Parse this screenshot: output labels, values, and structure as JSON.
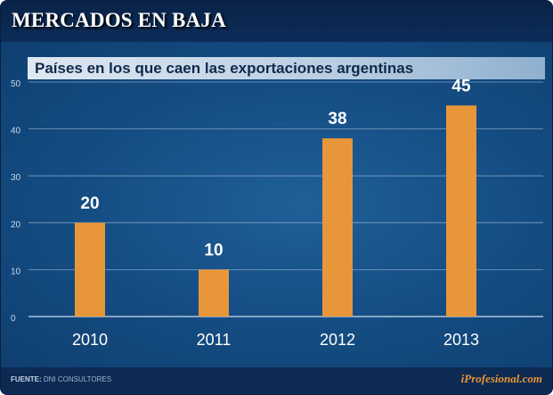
{
  "header": {
    "title": "MERCADOS EN BAJA"
  },
  "chart_data": {
    "type": "bar",
    "title": "Países en los que caen las exportaciones argentinas",
    "categories": [
      "2010",
      "2011",
      "2012",
      "2013"
    ],
    "values": [
      20,
      10,
      38,
      45
    ],
    "data_labels": [
      "20",
      "10",
      "38",
      "45"
    ],
    "ylim": [
      0,
      50
    ],
    "yticks": [
      0,
      10,
      20,
      30,
      40,
      50
    ],
    "ytick_labels": [
      "0",
      "10",
      "20",
      "30",
      "40",
      "50"
    ],
    "xlabel": "",
    "ylabel": "",
    "grid": true,
    "bar_color": "#e8963a"
  },
  "footer": {
    "source_label": "FUENTE:",
    "source_text": "DNI CONSULTORES",
    "brand": "iProfesional.com"
  }
}
